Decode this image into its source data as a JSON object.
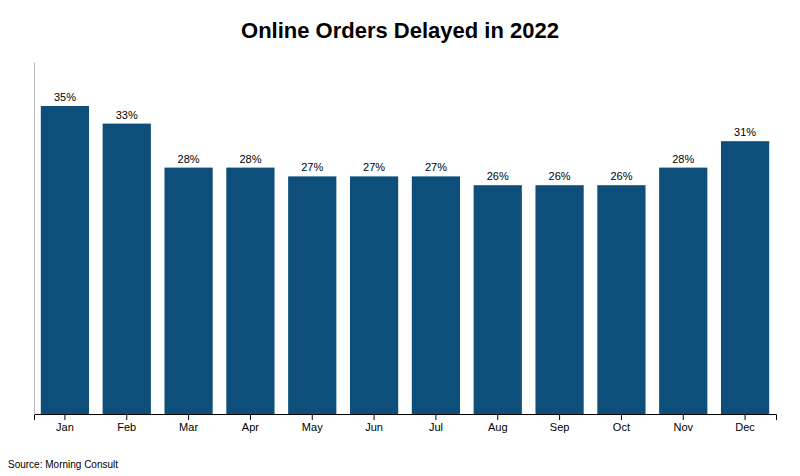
{
  "chart_data": {
    "type": "bar",
    "title": "Online Orders Delayed in 2022",
    "categories": [
      "Jan",
      "Feb",
      "Mar",
      "Apr",
      "May",
      "Jun",
      "Jul",
      "Aug",
      "Sep",
      "Oct",
      "Nov",
      "Dec"
    ],
    "values": [
      35,
      33,
      28,
      28,
      27,
      27,
      27,
      26,
      26,
      26,
      28,
      31
    ],
    "value_labels": [
      "35%",
      "33%",
      "28%",
      "28%",
      "27%",
      "27%",
      "27%",
      "26%",
      "26%",
      "26%",
      "28%",
      "31%"
    ],
    "color": "#0d4f7a",
    "ylim": [
      0,
      40
    ],
    "grid": false,
    "data_labels": true,
    "tick_labels": "x",
    "annotations": [
      "Source: Morning Consult"
    ]
  }
}
